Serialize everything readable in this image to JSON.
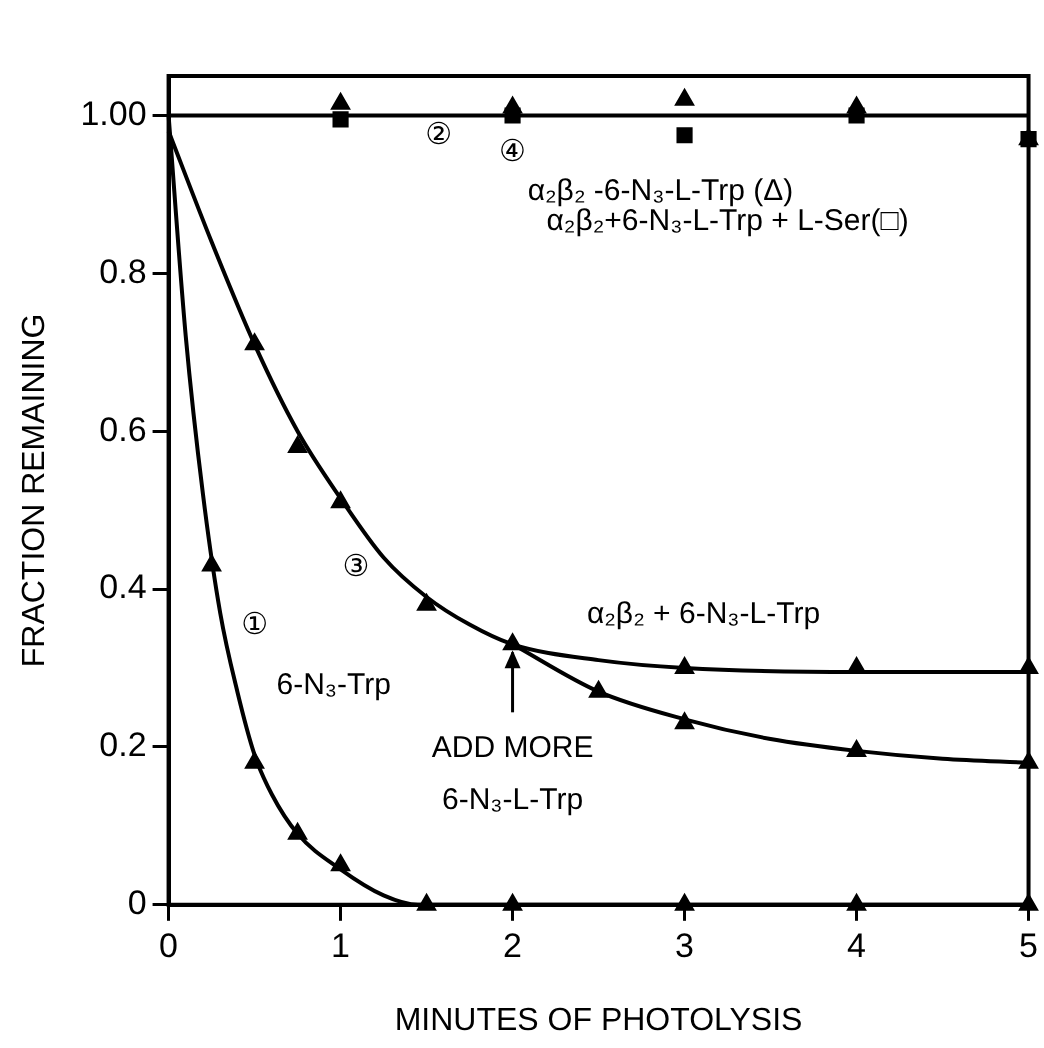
{
  "chart_data": {
    "type": "scatter",
    "xlabel": "MINUTES OF PHOTOLYSIS",
    "ylabel": "FRACTION REMAINING",
    "xlim": [
      0,
      5
    ],
    "xticks": [
      0,
      1,
      2,
      3,
      4,
      5
    ],
    "ylim": [
      0,
      1.05
    ],
    "yticks": [
      0,
      0.2,
      0.4,
      0.6,
      0.8,
      {
        "value": 1,
        "label": "1.00"
      }
    ],
    "grid": false,
    "legend": false,
    "series": [
      {
        "type": "line",
        "color": "#000000",
        "marker": "none",
        "x": [
          0,
          0.1,
          0.2,
          0.3,
          0.4,
          0.5,
          0.6,
          0.75,
          1.0,
          1.25,
          1.45,
          5
        ],
        "values": [
          1,
          0.72,
          0.52,
          0.37,
          0.27,
          0.19,
          0.14,
          0.09,
          0.045,
          0.012,
          0,
          0
        ]
      },
      {
        "type": "line",
        "color": "#000000",
        "marker": "none",
        "x": [
          0,
          0.25,
          0.5,
          0.75,
          1.0,
          1.25,
          1.5,
          1.75,
          2,
          2.5,
          3,
          4,
          5
        ],
        "values": [
          0.98,
          0.84,
          0.71,
          0.6,
          0.515,
          0.44,
          0.39,
          0.355,
          0.33,
          0.31,
          0.3,
          0.295,
          0.295
        ]
      },
      {
        "type": "line",
        "color": "#000000",
        "marker": "none",
        "x": [
          2,
          2.5,
          3,
          3.5,
          4,
          4.5,
          5
        ],
        "values": [
          0.33,
          0.27,
          0.235,
          0.21,
          0.195,
          0.185,
          0.18
        ]
      },
      {
        "type": "line",
        "color": "#000000",
        "marker": "none",
        "x": [
          0,
          5
        ],
        "values": [
          1,
          1
        ]
      },
      {
        "color": "#000000",
        "marker": "triangle",
        "x": [
          0.25,
          0.5,
          0.75,
          1,
          1.5,
          2,
          3,
          4,
          5
        ],
        "values": [
          0.43,
          0.18,
          0.09,
          0.05,
          0,
          0,
          0,
          0,
          0
        ]
      },
      {
        "color": "#000000",
        "marker": "triangle",
        "x": [
          0.5,
          0.75,
          1,
          1.5,
          2,
          3,
          4,
          5
        ],
        "values": [
          0.71,
          0.58,
          0.51,
          0.38,
          0.33,
          0.3,
          0.3,
          0.3
        ]
      },
      {
        "color": "#000000",
        "marker": "triangle",
        "x": [
          2.5,
          3,
          4,
          5
        ],
        "values": [
          0.27,
          0.23,
          0.195,
          0.18
        ]
      },
      {
        "color": "#000000",
        "marker": "triangle",
        "x": [
          1,
          2,
          3,
          4,
          5
        ],
        "values": [
          1.015,
          1.01,
          1.02,
          1.01,
          0.97
        ]
      },
      {
        "color": "#000000",
        "marker": "square",
        "x": [
          1,
          2,
          3,
          4,
          5
        ],
        "values": [
          0.995,
          1.0,
          0.975,
          1.0,
          0.97
        ]
      }
    ],
    "annotations": [
      "②",
      "④",
      "α₂β₂ -6-N₃-L-Trp (Δ)",
      "α₂β₂+6-N₃-L-Trp + L-Ser(□)",
      "③",
      "①",
      "α₂β₂ + 6-N₃-L-Trp",
      "6-N₃-Trp",
      {
        "text": "ADD MORE\n6-N₃-L-Trp",
        "x": 2,
        "y": 0.33
      }
    ]
  }
}
